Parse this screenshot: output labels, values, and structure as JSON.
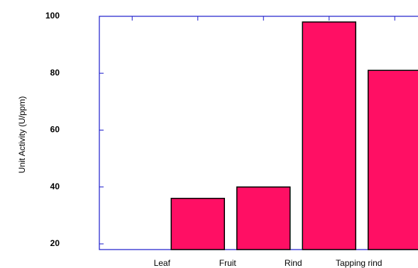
{
  "chart_data": {
    "type": "bar",
    "y_label": "Unit Activity (U/ppm)",
    "categories": [
      "Leaf",
      "Fruit",
      "Rind",
      "Tapping rind",
      null
    ],
    "values": [
      null,
      36,
      40,
      98,
      81
    ],
    "color": "#ff0f64",
    "ylim": [
      18,
      100
    ],
    "yticks": [
      20,
      40,
      60,
      80,
      100
    ]
  }
}
